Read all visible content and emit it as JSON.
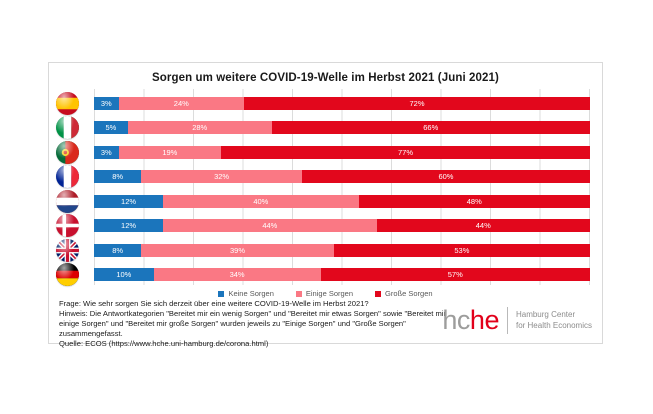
{
  "title": "Sorgen um weitere COVID-19-Welle im Herbst 2021 (Juni 2021)",
  "chart_data": {
    "type": "bar",
    "orientation": "horizontal",
    "stacked": true,
    "title": "Sorgen um weitere COVID-19-Welle im Herbst 2021 (Juni 2021)",
    "categories": [
      "Spanien",
      "Italien",
      "Portugal",
      "Frankreich",
      "Niederlande",
      "Dänemark",
      "Großbritannien",
      "Deutschland"
    ],
    "flags": [
      "spain",
      "italy",
      "portugal",
      "france",
      "netherlands",
      "denmark",
      "uk",
      "germany"
    ],
    "series": [
      {
        "name": "Keine Sorgen",
        "color": "#1b75bc",
        "values": [
          3,
          5,
          3,
          8,
          12,
          12,
          8,
          10
        ]
      },
      {
        "name": "Einige Sorgen",
        "color": "#fa7884",
        "values": [
          24,
          28,
          19,
          32,
          40,
          44,
          39,
          34
        ]
      },
      {
        "name": "Große Sorgen",
        "color": "#e2071c",
        "values": [
          72,
          66,
          77,
          60,
          48,
          44,
          53,
          57
        ]
      }
    ],
    "value_suffix": "%",
    "xlim": [
      0,
      100
    ],
    "grid": "vertical gridlines every 10%",
    "legend_position": "bottom-center"
  },
  "footnotes": {
    "frage": "Frage: Wie sehr sorgen Sie sich derzeit über eine weitere COVID-19-Welle im Herbst 2021?",
    "hinweis": "Hinweis: Die Antwortkategorien \"Bereitet mir ein wenig Sorgen\" und \"Bereitet mir etwas Sorgen\" sowie \"Bereitet mir einige Sorgen\" und \"Bereitet mir große Sorgen\" wurden jeweils zu \"Einige Sorgen\" und \"Große Sorgen\" zusammengefasst.",
    "quelle": "Quelle: ECOS (https://www.hche.uni-hamburg.de/corona.html)"
  },
  "logo": {
    "word_gray": "hc",
    "word_red": "he",
    "line1": "Hamburg Center",
    "line2": "for Health Economics"
  }
}
